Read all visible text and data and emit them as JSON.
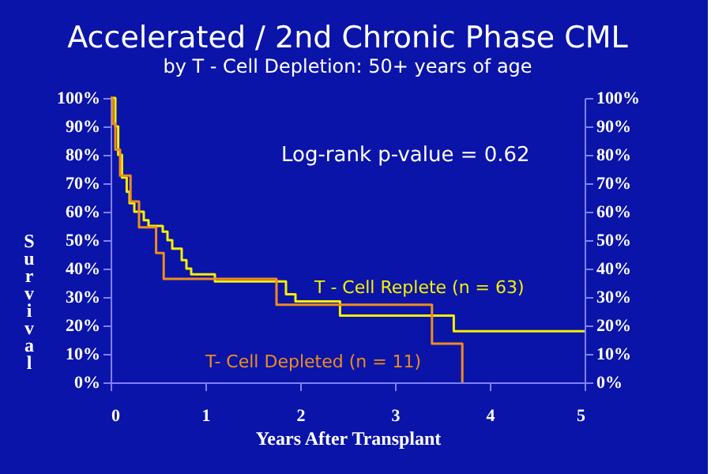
{
  "chart_data": {
    "type": "step",
    "title": "Accelerated / 2nd Chronic Phase CML",
    "subtitle": "by T - Cell Depletion: 50+ years of age",
    "xlabel": "Years After Transplant",
    "ylabel": "Survival",
    "annotations": [
      "Log-rank p-value = 0.62"
    ],
    "series": [
      {
        "name": "T - Cell Replete (n = 63)",
        "color": "#f5f000",
        "x": [
          0,
          0.05,
          0.08,
          0.12,
          0.17,
          0.2,
          0.25,
          0.35,
          0.4,
          0.55,
          0.6,
          0.65,
          0.75,
          0.8,
          0.85,
          1.1,
          1.85,
          1.95,
          2.42,
          3.62,
          5
        ],
        "values": [
          100,
          90,
          80,
          72,
          67,
          63,
          60,
          57,
          55,
          53,
          50,
          47,
          43,
          40,
          38,
          35.5,
          31,
          28.5,
          23.5,
          18,
          18
        ]
      },
      {
        "name": "T- Cell Depleted (n = 11)",
        "color": "#f08c1e",
        "x": [
          0,
          0.02,
          0.05,
          0.1,
          0.21,
          0.3,
          0.48,
          0.56,
          1.75,
          3.39,
          3.71
        ],
        "values": [
          100,
          90.9,
          81.8,
          72.7,
          63.6,
          54.5,
          45.5,
          36.4,
          27.3,
          13.6,
          0
        ]
      }
    ],
    "xlim": [
      0,
      5
    ],
    "xticks": [
      0,
      1,
      2,
      3,
      4,
      5
    ],
    "ylim": [
      0,
      100
    ],
    "yticks": [
      {
        "value": 0,
        "label": "0%"
      },
      {
        "value": 10,
        "label": "10%"
      },
      {
        "value": 20,
        "label": "20%"
      },
      {
        "value": 30,
        "label": "30%"
      },
      {
        "value": 40,
        "label": "40%"
      },
      {
        "value": 50,
        "label": "50%"
      },
      {
        "value": 60,
        "label": "60%"
      },
      {
        "value": 70,
        "label": "70%"
      },
      {
        "value": 80,
        "label": "80%"
      },
      {
        "value": 90,
        "label": "90%"
      },
      {
        "value": 100,
        "label": "100%"
      }
    ],
    "y2lim": [
      0,
      100
    ],
    "y2ticks": [
      {
        "value": 0,
        "label": "0%"
      },
      {
        "value": 10,
        "label": "10%"
      },
      {
        "value": 20,
        "label": "20%"
      },
      {
        "value": 30,
        "label": "30%"
      },
      {
        "value": 40,
        "label": "40%"
      },
      {
        "value": 50,
        "label": "50%"
      },
      {
        "value": 60,
        "label": "60%"
      },
      {
        "value": 70,
        "label": "70%"
      },
      {
        "value": 80,
        "label": "80%"
      },
      {
        "value": 90,
        "label": "90%"
      },
      {
        "value": 100,
        "label": "100%"
      }
    ],
    "grid": false,
    "marker": "none",
    "line_style": "solid"
  }
}
